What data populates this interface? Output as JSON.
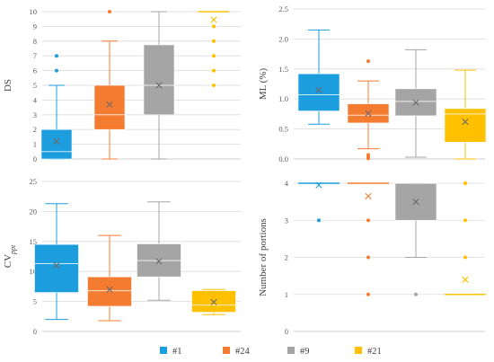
{
  "legend": [
    {
      "label": "#1",
      "color": "#1B9DDE"
    },
    {
      "label": "#24",
      "color": "#F47C30"
    },
    {
      "label": "#9",
      "color": "#A5A5A5"
    },
    {
      "label": "#21",
      "color": "#FFC000"
    }
  ],
  "chart_data": [
    {
      "type": "box",
      "ylabel": "DS",
      "ylim": [
        0,
        10
      ],
      "yticks": [
        "0",
        "1",
        "2",
        "3",
        "4",
        "5",
        "6",
        "7",
        "8",
        "9",
        "10"
      ],
      "grid": true,
      "series": [
        {
          "group": "#1",
          "color": "#1B9DDE",
          "min": 0,
          "q1": 0,
          "median": 0.5,
          "q3": 2,
          "max": 5,
          "mean": 1.2,
          "outliers": [
            6,
            7
          ]
        },
        {
          "group": "#24",
          "color": "#F47C30",
          "min": 0,
          "q1": 2,
          "median": 3,
          "q3": 5,
          "max": 8,
          "mean": 3.7,
          "outliers": [
            10
          ]
        },
        {
          "group": "#9",
          "color": "#A5A5A5",
          "min": 0,
          "q1": 3,
          "median": 5,
          "q3": 7.75,
          "max": 10,
          "mean": 5.0,
          "outliers": []
        },
        {
          "group": "#21",
          "color": "#FFC000",
          "min": 10,
          "q1": 10,
          "median": 10,
          "q3": 10,
          "max": 10,
          "mean": 9.45,
          "outliers": [
            5,
            6,
            7,
            8,
            9
          ]
        }
      ]
    },
    {
      "type": "box",
      "ylabel": "ML (%)",
      "ylim": [
        0,
        2.5
      ],
      "yticks": [
        "0.0",
        "0.5",
        "1.0",
        "1.5",
        "2.0",
        "2.5"
      ],
      "grid": true,
      "series": [
        {
          "group": "#1",
          "color": "#1B9DDE",
          "min": 0.58,
          "q1": 0.8,
          "median": 1.07,
          "q3": 1.42,
          "max": 2.15,
          "mean": 1.15,
          "outliers": []
        },
        {
          "group": "#24",
          "color": "#F47C30",
          "min": 0.17,
          "q1": 0.6,
          "median": 0.73,
          "q3": 0.92,
          "max": 1.3,
          "mean": 0.76,
          "outliers": [
            1.63,
            0.07,
            0.03,
            0.01
          ]
        },
        {
          "group": "#9",
          "color": "#A5A5A5",
          "min": 0.03,
          "q1": 0.72,
          "median": 0.96,
          "q3": 1.17,
          "max": 1.82,
          "mean": 0.94,
          "outliers": []
        },
        {
          "group": "#21",
          "color": "#FFC000",
          "min": 0.0,
          "q1": 0.28,
          "median": 0.75,
          "q3": 0.84,
          "max": 1.48,
          "mean": 0.62,
          "outliers": []
        }
      ]
    },
    {
      "type": "box",
      "ylabel": "CV",
      "ylabel_sub": "ppt",
      "ylim": [
        0,
        25
      ],
      "yticks": [
        "0",
        "5",
        "10",
        "15",
        "20",
        "25"
      ],
      "grid": true,
      "series": [
        {
          "group": "#1",
          "color": "#1B9DDE",
          "min": 2,
          "q1": 6.5,
          "median": 11.3,
          "q3": 14.5,
          "max": 21.3,
          "mean": 11.0,
          "outliers": []
        },
        {
          "group": "#24",
          "color": "#F47C30",
          "min": 1.8,
          "q1": 4.2,
          "median": 6.8,
          "q3": 9.1,
          "max": 16,
          "mean": 7.0,
          "outliers": []
        },
        {
          "group": "#9",
          "color": "#A5A5A5",
          "min": 5.2,
          "q1": 9.1,
          "median": 11.8,
          "q3": 14.6,
          "max": 21.6,
          "mean": 11.7,
          "outliers": []
        },
        {
          "group": "#21",
          "color": "#FFC000",
          "min": 2.8,
          "q1": 3.2,
          "median": 4.4,
          "q3": 6.8,
          "max": 7.0,
          "mean": 4.9,
          "outliers": []
        }
      ]
    },
    {
      "type": "box",
      "ylabel": "Number of portions",
      "ylim": [
        0,
        4
      ],
      "yticks": [
        "0",
        "1",
        "2",
        "3",
        "4"
      ],
      "grid": true,
      "series": [
        {
          "group": "#1",
          "color": "#1B9DDE",
          "min": 4,
          "q1": 4,
          "median": 4,
          "q3": 4,
          "max": 4,
          "mean": 3.95,
          "outliers": [
            3
          ]
        },
        {
          "group": "#24",
          "color": "#F47C30",
          "min": 4,
          "q1": 4,
          "median": 4,
          "q3": 4,
          "max": 4,
          "mean": 3.65,
          "outliers": [
            3,
            2,
            1
          ]
        },
        {
          "group": "#9",
          "color": "#A5A5A5",
          "min": 2,
          "q1": 3,
          "median": 4,
          "q3": 4,
          "max": 4,
          "mean": 3.5,
          "outliers": [
            1
          ]
        },
        {
          "group": "#21",
          "color": "#FFC000",
          "min": 1,
          "q1": 1,
          "median": 1,
          "q3": 1,
          "max": 1,
          "mean": 1.4,
          "outliers": [
            4,
            3,
            2
          ]
        }
      ]
    }
  ]
}
